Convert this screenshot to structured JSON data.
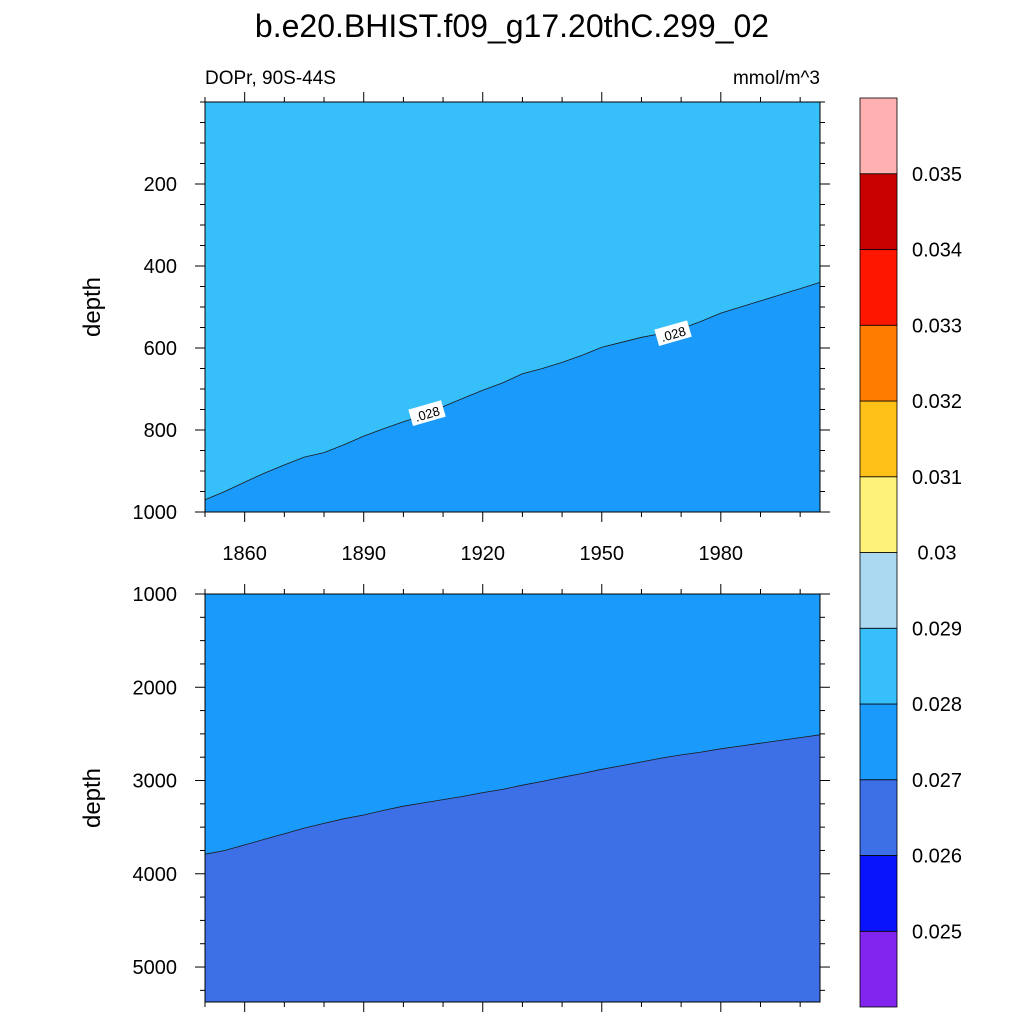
{
  "chart_data": {
    "type": "heatmap",
    "title": "b.e20.BHIST.f09_g17.20thC.299_02",
    "subtitle_left": "DOPr, 90S-44S",
    "subtitle_right": "mmol/m^3",
    "xlim": [
      1850,
      2005
    ],
    "xticks": [
      1860,
      1890,
      1920,
      1950,
      1980
    ],
    "xtick_labels": [
      "1860",
      "1890",
      "1920",
      "1950",
      "1980"
    ],
    "panels": [
      {
        "ylabel": "depth",
        "ylim": [
          0,
          1000
        ],
        "yticks": [
          200,
          400,
          600,
          800,
          1000
        ],
        "ytick_labels": [
          "200",
          "400",
          "600",
          "800",
          "1000"
        ],
        "fills": [
          {
            "range": [
              0.028,
              0.029
            ],
            "color": "#36bff8",
            "region": "above-contour"
          },
          {
            "range": [
              0.027,
              0.028
            ],
            "color": "#1a9afa",
            "region": "below-contour"
          }
        ],
        "contour_level": 0.028,
        "contour_labels": [
          {
            "text": ".028",
            "x": 1906,
            "y": 760
          },
          {
            "text": ".028",
            "x": 1968,
            "y": 565
          }
        ],
        "contour": {
          "x": [
            1850,
            1855,
            1860,
            1865,
            1870,
            1875,
            1880,
            1885,
            1890,
            1895,
            1900,
            1905,
            1910,
            1915,
            1920,
            1925,
            1930,
            1935,
            1940,
            1945,
            1950,
            1955,
            1960,
            1965,
            1970,
            1975,
            1980,
            1985,
            1990,
            1995,
            2000,
            2005
          ],
          "y": [
            970,
            950,
            927,
            905,
            885,
            866,
            855,
            836,
            815,
            797,
            780,
            765,
            743,
            723,
            703,
            685,
            663,
            650,
            635,
            618,
            598,
            586,
            574,
            565,
            553,
            535,
            515,
            500,
            485,
            470,
            455,
            440
          ]
        }
      },
      {
        "ylabel": "depth",
        "ylim": [
          1000,
          5375
        ],
        "yticks": [
          1000,
          2000,
          3000,
          4000,
          5000
        ],
        "ytick_labels": [
          "1000",
          "2000",
          "3000",
          "4000",
          "5000"
        ],
        "fills": [
          {
            "range": [
              0.027,
              0.028
            ],
            "color": "#1a9afa",
            "region": "above-contour"
          },
          {
            "range": [
              0.026,
              0.027
            ],
            "color": "#3d6fe6",
            "region": "below-contour"
          }
        ],
        "contour_level": 0.027,
        "contour": {
          "x": [
            1850,
            1855,
            1860,
            1865,
            1870,
            1875,
            1880,
            1885,
            1890,
            1895,
            1900,
            1905,
            1910,
            1915,
            1920,
            1925,
            1930,
            1935,
            1940,
            1945,
            1950,
            1955,
            1960,
            1965,
            1970,
            1975,
            1980,
            1985,
            1990,
            1995,
            2000,
            2005
          ],
          "y": [
            3790,
            3750,
            3690,
            3630,
            3570,
            3510,
            3460,
            3410,
            3370,
            3320,
            3275,
            3240,
            3205,
            3170,
            3130,
            3095,
            3050,
            3010,
            2965,
            2925,
            2880,
            2840,
            2800,
            2760,
            2725,
            2695,
            2660,
            2630,
            2600,
            2570,
            2540,
            2510
          ]
        }
      }
    ],
    "colorbar": {
      "labels": [
        "0.025",
        "0.026",
        "0.027",
        "0.028",
        "0.029",
        "0.03",
        "0.031",
        "0.032",
        "0.033",
        "0.034",
        "0.035"
      ],
      "colors": [
        "#8024ee",
        "#0a14fc",
        "#3d6fe6",
        "#1a9afa",
        "#36bff8",
        "#aad9f1",
        "#fff279",
        "#ffc117",
        "#ff7c00",
        "#ff1600",
        "#c80000",
        "#ffb0b0"
      ]
    }
  }
}
